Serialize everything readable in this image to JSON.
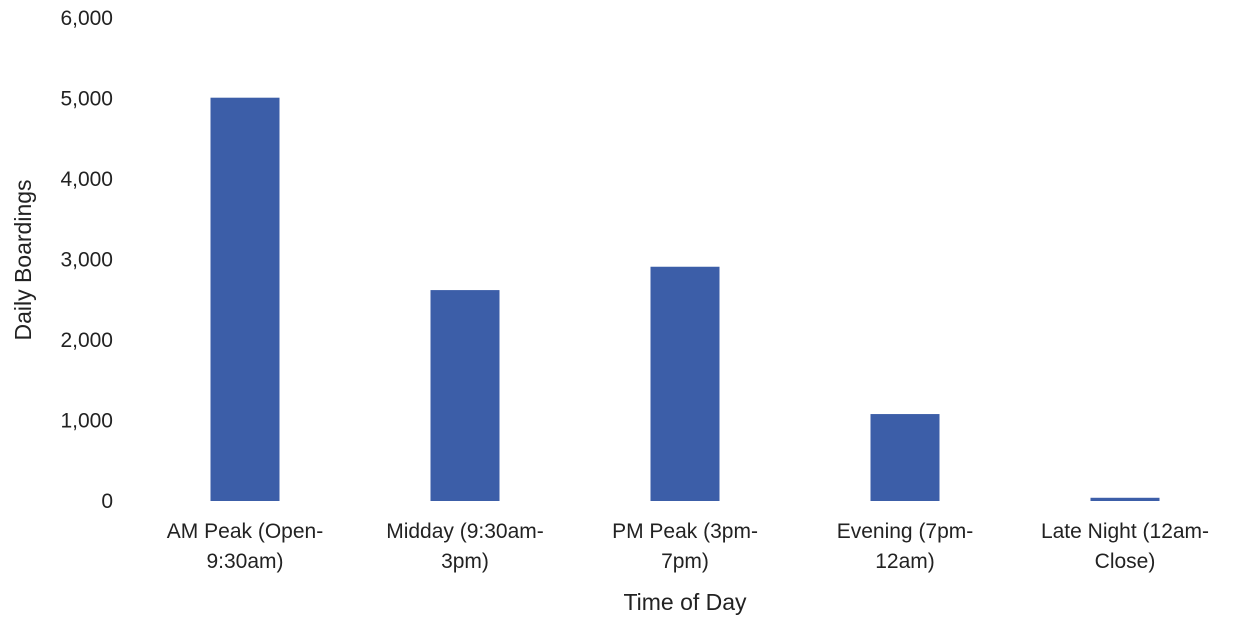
{
  "chart_data": {
    "type": "bar",
    "title": "",
    "xlabel": "Time of Day",
    "ylabel": "Daily Boardings",
    "ylim": [
      0,
      6000
    ],
    "yticks": [
      0,
      1000,
      2000,
      3000,
      4000,
      5000,
      6000
    ],
    "ytick_labels": [
      "0",
      "1,000",
      "2,000",
      "3,000",
      "4,000",
      "5,000",
      "6,000"
    ],
    "grid": false,
    "legend": "none",
    "categories": [
      "AM Peak (Open-9:30am)",
      "Midday (9:30am-3pm)",
      "PM Peak (3pm-7pm)",
      "Evening (7pm-12am)",
      "Late Night (12am-Close)"
    ],
    "category_lines": [
      [
        "AM Peak (Open-",
        "9:30am)"
      ],
      [
        "Midday (9:30am-",
        "3pm)"
      ],
      [
        "PM Peak (3pm-",
        "7pm)"
      ],
      [
        "Evening (7pm-",
        "12am)"
      ],
      [
        "Late Night (12am-",
        "Close)"
      ]
    ],
    "values": [
      5010,
      2620,
      2910,
      1080,
      40
    ],
    "bar_color": "#3c5ea8"
  }
}
